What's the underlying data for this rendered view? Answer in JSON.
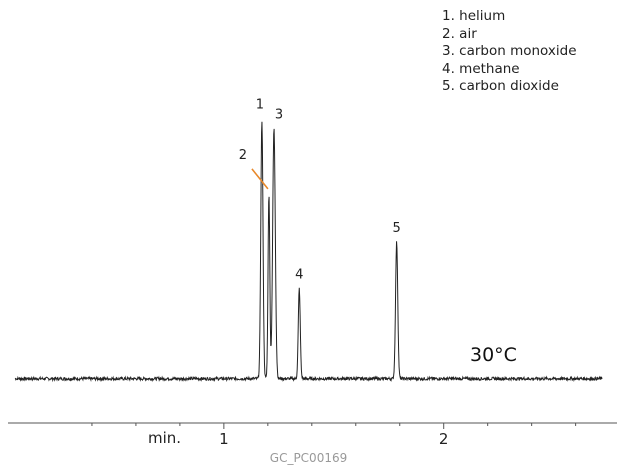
{
  "chart_data": {
    "type": "line",
    "title": "",
    "xlabel": "",
    "ylabel": "",
    "x_unit_label": "min.",
    "xlim": [
      0.05,
      2.72
    ],
    "x_ticks": [
      {
        "value": 1,
        "label": "1"
      },
      {
        "value": 2,
        "label": "2"
      }
    ],
    "x_minor_ticks": [
      0.4,
      0.6,
      0.8,
      1.2,
      1.4,
      1.6,
      1.8,
      2.2,
      2.4,
      2.6
    ],
    "baseline": 0,
    "ylim": [
      -0.04,
      1.08
    ],
    "peaks": [
      {
        "label": "1",
        "x": 1.173,
        "height": 1.0,
        "width": 0.005
      },
      {
        "label": "2",
        "x": 1.205,
        "height": 0.72,
        "width": 0.004
      },
      {
        "label": "3",
        "x": 1.228,
        "height": 0.97,
        "width": 0.006
      },
      {
        "label": "4",
        "x": 1.343,
        "height": 0.35,
        "width": 0.0045
      },
      {
        "label": "5",
        "x": 1.786,
        "height": 0.53,
        "width": 0.005
      }
    ],
    "annotation_colors": {
      "line": "#222222",
      "pointer": "#e8882a",
      "axis": "#555555"
    }
  },
  "legend": [
    "1. helium",
    "2. air",
    "3. carbon monoxide",
    "4. methane",
    "5. carbon dioxide"
  ],
  "condition": "30°C",
  "x_unit": "min.",
  "code": "GC_PC00169"
}
